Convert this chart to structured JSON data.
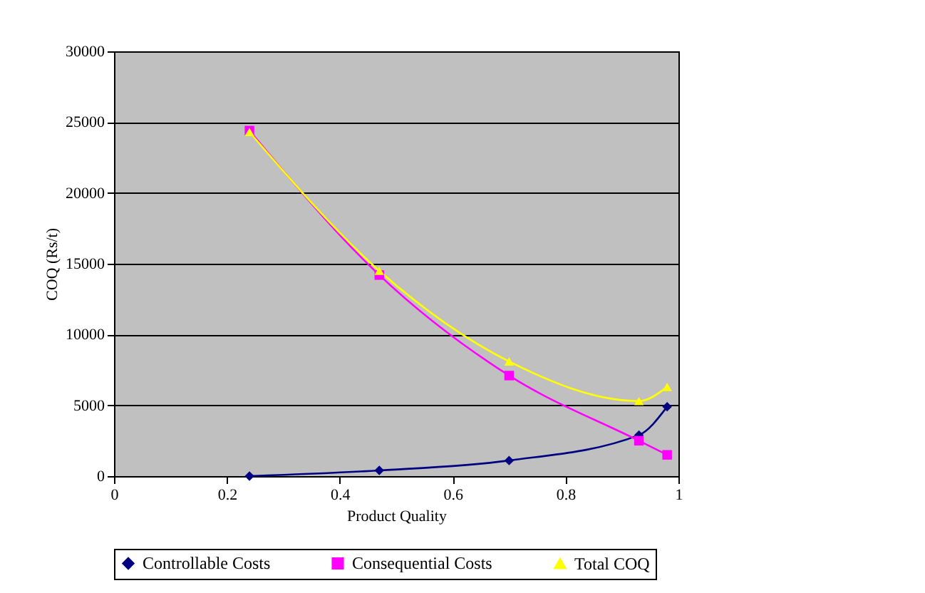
{
  "chart_data": {
    "type": "line",
    "xlabel": "Product Quality",
    "ylabel": "COQ (Rs/t)",
    "x": [
      0.24,
      0.47,
      0.7,
      0.93,
      0.98
    ],
    "series": [
      {
        "name": "Controllable Costs",
        "color": "#000080",
        "marker": "diamond",
        "values": [
          0,
          400,
          1100,
          2900,
          4900
        ]
      },
      {
        "name": "Consequential Costs",
        "color": "#ff00ff",
        "marker": "square",
        "values": [
          24400,
          14200,
          7100,
          2500,
          1500
        ]
      },
      {
        "name": "Total COQ",
        "color": "#ffff00",
        "marker": "triangle",
        "values": [
          24300,
          14500,
          8100,
          5300,
          6300
        ]
      }
    ],
    "xlim": [
      0,
      1
    ],
    "xticks": [
      0,
      0.2,
      0.4,
      0.6,
      0.8,
      1
    ],
    "ylim": [
      0,
      30000
    ],
    "yticks": [
      0,
      5000,
      10000,
      15000,
      20000,
      25000,
      30000
    ],
    "grid": "y",
    "legend": "bottom",
    "line_style": "solid"
  }
}
